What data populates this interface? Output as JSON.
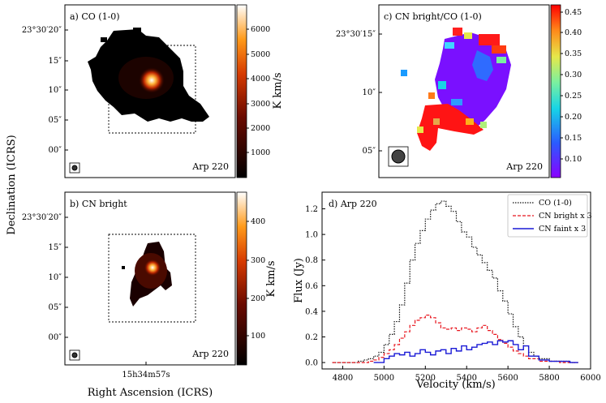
{
  "figure": {
    "xlabel_left": "Right Ascension (ICRS)",
    "ylabel_left": "Declination (ICRS)"
  },
  "colors": {
    "co": "#111111",
    "cn_bright": "#e8141d",
    "cn_faint": "#1a1ad6"
  },
  "panels": {
    "a": {
      "label": "a) CO (1-0)",
      "source": "Arp 220",
      "colorbar_label": "K km/s",
      "colorbar_ticks": [
        "1000",
        "2000",
        "3000",
        "4000",
        "5000",
        "6000"
      ],
      "ytick_labels": [
        "23°30′20″",
        "15″",
        "10″",
        "05″",
        "00″"
      ]
    },
    "b": {
      "label": "b) CN bright",
      "source": "Arp 220",
      "colorbar_label": "K km/s",
      "colorbar_ticks": [
        "100",
        "200",
        "300",
        "400"
      ],
      "ytick_labels": [
        "23°30′20″",
        "15″",
        "10″",
        "05″",
        "00″"
      ],
      "xtick_label": "15h34m57s"
    },
    "c": {
      "label": "c) CN bright/CO (1-0)",
      "source": "Arp 220",
      "colorbar_ticks": [
        "0.10",
        "0.15",
        "0.20",
        "0.25",
        "0.30",
        "0.35",
        "0.40",
        "0.45"
      ],
      "ytick_labels": [
        "23°30′15″",
        "10″",
        "05″"
      ]
    }
  },
  "chart_data": {
    "type": "line",
    "title": "d) Arp 220",
    "xlabel": "Velocity (km/s)",
    "ylabel": "Flux (Jy)",
    "xlim": [
      4700,
      6000
    ],
    "ylim": [
      -0.05,
      1.33
    ],
    "xticks": [
      4800,
      5000,
      5200,
      5400,
      5600,
      5800,
      6000
    ],
    "yticks": [
      0.0,
      0.2,
      0.4,
      0.6,
      0.8,
      1.0,
      1.2
    ],
    "legend": "top-right",
    "series": [
      {
        "name": "CO (1-0)",
        "style": "dotted",
        "color": "#111111",
        "x": [
          4750,
          4825,
          4875,
          4900,
          4925,
          4950,
          4975,
          5000,
          5025,
          5050,
          5075,
          5100,
          5125,
          5150,
          5175,
          5200,
          5225,
          5250,
          5275,
          5300,
          5325,
          5350,
          5375,
          5400,
          5425,
          5450,
          5475,
          5500,
          5525,
          5550,
          5575,
          5600,
          5625,
          5650,
          5675,
          5700,
          5725,
          5750,
          5800,
          5850,
          5900,
          5940
        ],
        "y": [
          0.0,
          0.0,
          0.01,
          0.02,
          0.03,
          0.05,
          0.08,
          0.14,
          0.22,
          0.32,
          0.45,
          0.62,
          0.8,
          0.93,
          1.03,
          1.12,
          1.19,
          1.24,
          1.26,
          1.22,
          1.18,
          1.1,
          1.02,
          0.98,
          0.9,
          0.84,
          0.78,
          0.72,
          0.66,
          0.56,
          0.48,
          0.38,
          0.28,
          0.2,
          0.13,
          0.08,
          0.05,
          0.03,
          0.01,
          0.01,
          0.0,
          0.0
        ]
      },
      {
        "name": "CN bright x 3",
        "style": "dashed",
        "color": "#e8141d",
        "x": [
          4750,
          4875,
          4925,
          4950,
          4975,
          5000,
          5025,
          5050,
          5075,
          5100,
          5125,
          5150,
          5175,
          5200,
          5225,
          5250,
          5275,
          5300,
          5325,
          5350,
          5375,
          5400,
          5425,
          5450,
          5475,
          5500,
          5525,
          5550,
          5575,
          5600,
          5625,
          5650,
          5675,
          5700,
          5750,
          5800,
          5850,
          5900,
          5940
        ],
        "y": [
          0.0,
          0.0,
          0.01,
          0.02,
          0.04,
          0.07,
          0.1,
          0.14,
          0.19,
          0.24,
          0.29,
          0.33,
          0.35,
          0.37,
          0.35,
          0.31,
          0.27,
          0.26,
          0.27,
          0.25,
          0.27,
          0.26,
          0.24,
          0.27,
          0.29,
          0.25,
          0.22,
          0.18,
          0.15,
          0.12,
          0.09,
          0.07,
          0.05,
          0.03,
          0.01,
          0.01,
          0.0,
          0.0,
          0.0
        ]
      },
      {
        "name": "CN faint x 3",
        "style": "solid",
        "color": "#1a1ad6",
        "x": [
          4950,
          5000,
          5025,
          5050,
          5075,
          5100,
          5125,
          5150,
          5175,
          5200,
          5225,
          5250,
          5275,
          5300,
          5325,
          5350,
          5375,
          5400,
          5425,
          5450,
          5475,
          5500,
          5525,
          5550,
          5575,
          5600,
          5625,
          5650,
          5675,
          5700,
          5750,
          5800,
          5850,
          5900,
          5940
        ],
        "y": [
          0.0,
          0.03,
          0.05,
          0.07,
          0.06,
          0.08,
          0.05,
          0.07,
          0.1,
          0.08,
          0.06,
          0.09,
          0.1,
          0.07,
          0.11,
          0.09,
          0.13,
          0.1,
          0.12,
          0.14,
          0.15,
          0.16,
          0.14,
          0.17,
          0.16,
          0.17,
          0.14,
          0.1,
          0.13,
          0.05,
          0.02,
          0.01,
          0.01,
          0.0,
          0.0
        ]
      }
    ]
  }
}
